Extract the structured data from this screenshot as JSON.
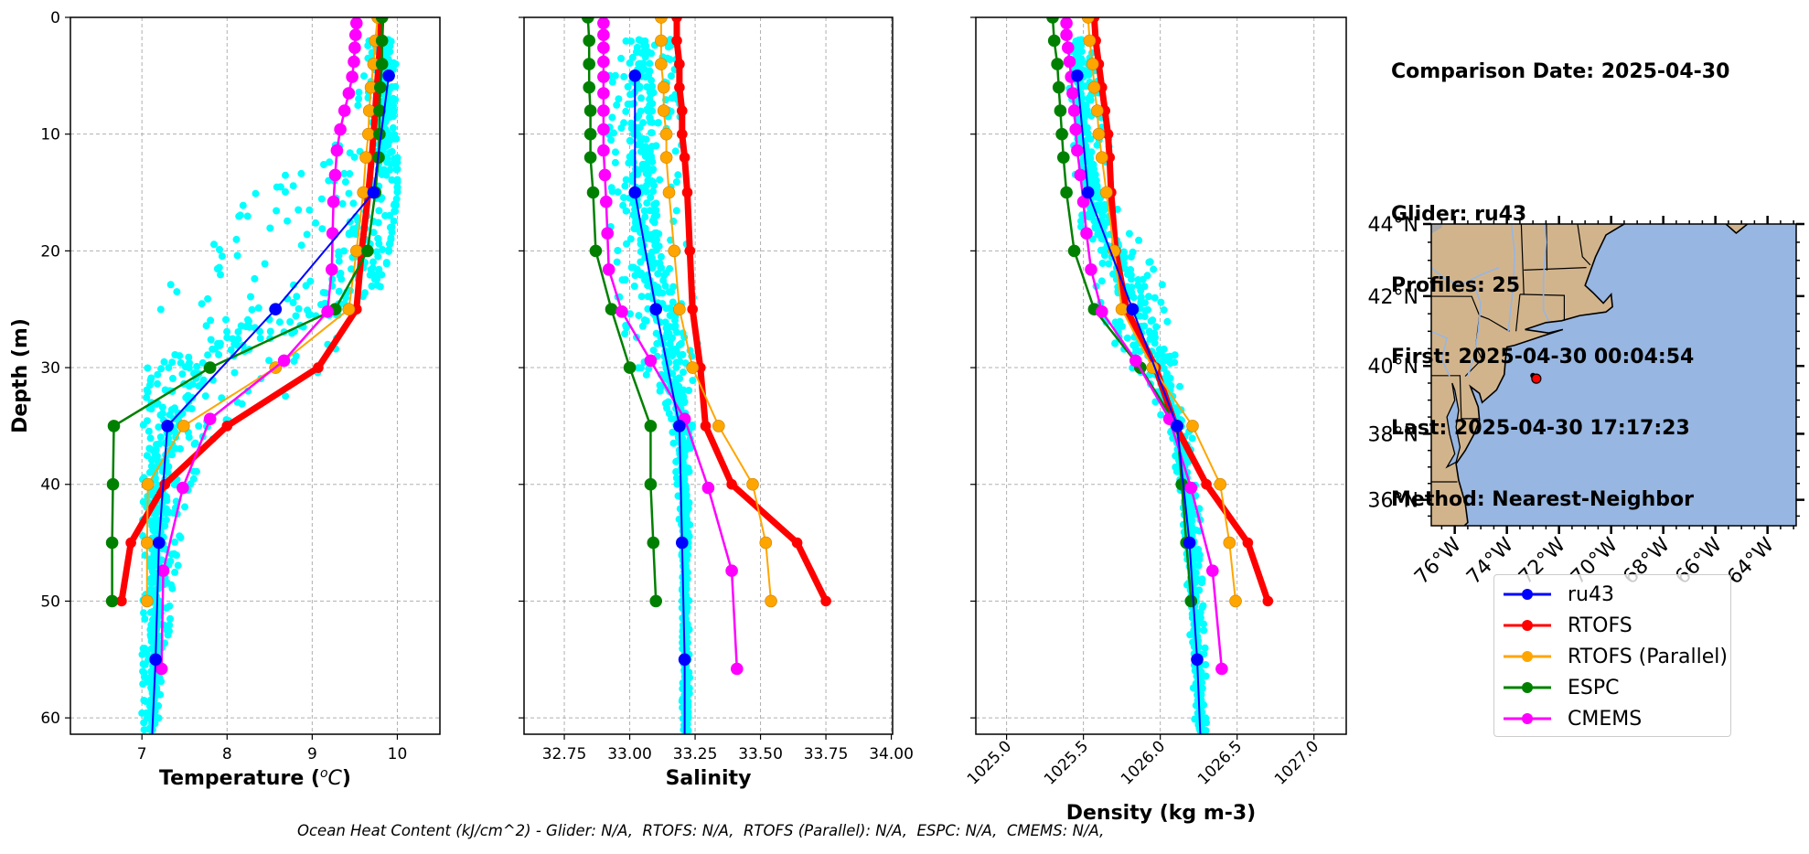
{
  "info_panel": {
    "comparison_date": "Comparison Date: 2025-04-30",
    "glider": "Glider: ru43",
    "profiles": "Profiles: 25",
    "first": "First: 2025-04-30 00:04:54",
    "last": "Last: 2025-04-30 17:17:23",
    "method": "Method: Nearest-Neighbor"
  },
  "caption": "Ocean Heat Content (kJ/cm^2) - Glider: N/A,  RTOFS: N/A,  RTOFS (Parallel): N/A,  ESPC: N/A,  CMEMS: N/A,",
  "legend": [
    {
      "label": "ru43",
      "color": "#0000ff"
    },
    {
      "label": "RTOFS",
      "color": "#ff0000"
    },
    {
      "label": "RTOFS (Parallel)",
      "color": "#ffa500"
    },
    {
      "label": "ESPC",
      "color": "#008000"
    },
    {
      "label": "CMEMS",
      "color": "#ff00ff"
    }
  ],
  "chart_data": [
    {
      "type": "line",
      "id": "temperature",
      "title": "",
      "xlabel": "Temperature (°C)",
      "ylabel": "Depth (m)",
      "xlim": [
        6.16,
        10.5
      ],
      "ylim": [
        61.4,
        0
      ],
      "xticks": [
        "7",
        "8",
        "9",
        "10"
      ],
      "xtick_values": [
        7,
        8,
        9,
        10
      ],
      "yticks": [
        "0",
        "10",
        "20",
        "30",
        "40",
        "50",
        "60"
      ],
      "ytick_values": [
        0,
        10,
        20,
        30,
        40,
        50,
        60
      ],
      "grid": true,
      "glider_scatter": {
        "name": "ru43 profiles",
        "color": "#00ffff",
        "depth": [
          2,
          5,
          10,
          15,
          18,
          20,
          22,
          25,
          28,
          30,
          33,
          35,
          40,
          45,
          50,
          55,
          60,
          61
        ],
        "min": [
          9.6,
          9.55,
          9.5,
          8.3,
          7.9,
          7.6,
          7.35,
          7.2,
          7.1,
          7.05,
          7.0,
          7.0,
          7.0,
          7.0,
          7.0,
          7.0,
          7.0,
          7.0
        ],
        "max": [
          9.95,
          10.0,
          10.0,
          10.0,
          9.95,
          9.9,
          9.85,
          9.7,
          9.5,
          9.3,
          8.6,
          8.0,
          7.6,
          7.45,
          7.4,
          7.25,
          7.2,
          7.15
        ],
        "core": [
          9.88,
          9.9,
          9.9,
          9.88,
          9.82,
          9.75,
          9.6,
          9.1,
          8.0,
          7.5,
          7.3,
          7.25,
          7.2,
          7.18,
          7.16,
          7.15,
          7.12,
          7.1
        ]
      },
      "series": [
        {
          "name": "RTOFS",
          "color": "#ff0000",
          "depth": [
            0,
            2,
            4,
            6,
            8,
            10,
            12,
            15,
            20,
            25,
            30,
            35,
            40,
            45,
            50
          ],
          "values": [
            9.81,
            9.8,
            9.78,
            9.76,
            9.74,
            9.72,
            9.7,
            9.66,
            9.58,
            9.52,
            9.07,
            8.0,
            7.27,
            6.87,
            6.76
          ]
        },
        {
          "name": "RTOFS (Parallel)",
          "color": "#ffa500",
          "depth": [
            0,
            2,
            4,
            6,
            8,
            10,
            12,
            15,
            20,
            25,
            30,
            35,
            40,
            45,
            50
          ],
          "values": [
            9.77,
            9.74,
            9.72,
            9.69,
            9.67,
            9.66,
            9.63,
            9.6,
            9.52,
            9.43,
            8.57,
            7.49,
            7.07,
            7.06,
            7.06
          ]
        },
        {
          "name": "ESPC",
          "color": "#008000",
          "depth": [
            0,
            2,
            4,
            6,
            8,
            10,
            12,
            15,
            20,
            25,
            30,
            35,
            40,
            45,
            50
          ],
          "values": [
            9.82,
            9.82,
            9.82,
            9.8,
            9.79,
            9.79,
            9.78,
            9.74,
            9.65,
            9.27,
            7.8,
            6.67,
            6.66,
            6.65,
            6.65
          ]
        },
        {
          "name": "CMEMS",
          "color": "#ff00ff",
          "depth": [
            0.5,
            1.5,
            2.6,
            3.8,
            5.1,
            6.5,
            8.0,
            9.6,
            11.4,
            13.5,
            15.8,
            18.5,
            21.6,
            25.2,
            29.4,
            34.4,
            40.3,
            47.4,
            55.8
          ],
          "values": [
            9.52,
            9.51,
            9.5,
            9.49,
            9.47,
            9.43,
            9.38,
            9.33,
            9.29,
            9.27,
            9.25,
            9.24,
            9.23,
            9.18,
            8.67,
            7.8,
            7.48,
            7.25,
            7.23
          ]
        },
        {
          "name": "ru43",
          "color": "#0000ff",
          "depth": [
            5,
            15,
            25,
            35,
            45,
            55,
            61.4
          ],
          "values": [
            9.9,
            9.72,
            8.57,
            7.3,
            7.2,
            7.16,
            7.12
          ]
        }
      ]
    },
    {
      "type": "line",
      "id": "salinity",
      "title": "",
      "xlabel": "Salinity",
      "ylabel": "",
      "xlim": [
        32.596,
        34.005
      ],
      "ylim": [
        61.4,
        0
      ],
      "xticks": [
        "32.75",
        "33.00",
        "33.25",
        "33.50",
        "33.75",
        "34.00"
      ],
      "xtick_values": [
        32.75,
        33.0,
        33.25,
        33.5,
        33.75,
        34.0
      ],
      "yticks": [
        "",
        "",
        "",
        "",
        "",
        "",
        ""
      ],
      "ytick_values": [
        0,
        10,
        20,
        30,
        40,
        50,
        60
      ],
      "grid": true,
      "glider_scatter": {
        "name": "ru43 profiles",
        "color": "#00ffff",
        "depth": [
          2,
          5,
          10,
          15,
          20,
          25,
          28,
          30,
          33,
          35,
          40,
          45,
          50,
          55,
          60,
          61
        ],
        "min": [
          32.94,
          32.92,
          32.92,
          32.92,
          32.93,
          32.96,
          32.98,
          33.03,
          33.12,
          33.16,
          33.18,
          33.19,
          33.2,
          33.2,
          33.2,
          33.2
        ],
        "max": [
          33.18,
          33.2,
          33.2,
          33.2,
          33.22,
          33.25,
          33.26,
          33.25,
          33.25,
          33.24,
          33.23,
          33.23,
          33.23,
          33.23,
          33.23,
          33.23
        ],
        "core": [
          33.04,
          33.04,
          33.04,
          33.05,
          33.07,
          33.12,
          33.15,
          33.17,
          33.19,
          33.2,
          33.21,
          33.21,
          33.21,
          33.21,
          33.22,
          33.22
        ]
      },
      "series": [
        {
          "name": "RTOFS",
          "color": "#ff0000",
          "depth": [
            0,
            2,
            4,
            6,
            8,
            10,
            12,
            15,
            20,
            25,
            30,
            35,
            40,
            45,
            50
          ],
          "values": [
            33.18,
            33.18,
            33.19,
            33.19,
            33.2,
            33.2,
            33.21,
            33.22,
            33.23,
            33.24,
            33.27,
            33.29,
            33.39,
            33.64,
            33.75
          ]
        },
        {
          "name": "RTOFS (Parallel)",
          "color": "#ffa500",
          "depth": [
            0,
            2,
            4,
            6,
            8,
            10,
            12,
            15,
            20,
            25,
            30,
            35,
            40,
            45,
            50
          ],
          "values": [
            33.12,
            33.12,
            33.12,
            33.13,
            33.13,
            33.14,
            33.14,
            33.15,
            33.17,
            33.19,
            33.24,
            33.34,
            33.47,
            33.52,
            33.54
          ]
        },
        {
          "name": "ESPC",
          "color": "#008000",
          "depth": [
            0,
            2,
            4,
            6,
            8,
            10,
            12,
            15,
            20,
            25,
            30,
            35,
            40,
            45,
            50
          ],
          "values": [
            32.84,
            32.845,
            32.845,
            32.845,
            32.85,
            32.85,
            32.85,
            32.86,
            32.87,
            32.93,
            33.0,
            33.08,
            33.08,
            33.09,
            33.1
          ]
        },
        {
          "name": "CMEMS",
          "color": "#ff00ff",
          "depth": [
            0.5,
            1.5,
            2.6,
            3.8,
            5.1,
            6.5,
            8.0,
            9.6,
            11.4,
            13.5,
            15.8,
            18.5,
            21.6,
            25.2,
            29.4,
            34.4,
            40.3,
            47.4,
            55.8
          ],
          "values": [
            32.9,
            32.9,
            32.9,
            32.9,
            32.9,
            32.9,
            32.9,
            32.9,
            32.9,
            32.905,
            32.91,
            32.915,
            32.92,
            32.97,
            33.08,
            33.21,
            33.3,
            33.39,
            33.41
          ]
        },
        {
          "name": "ru43",
          "color": "#0000ff",
          "depth": [
            5,
            15,
            25,
            35,
            45,
            55,
            61.4
          ],
          "values": [
            33.02,
            33.02,
            33.1,
            33.19,
            33.2,
            33.21,
            33.21
          ]
        }
      ]
    },
    {
      "type": "line",
      "id": "density",
      "title": "",
      "xlabel": "Density (kg m-3)",
      "ylabel": "",
      "xlim": [
        1024.8,
        1027.21
      ],
      "ylim": [
        61.4,
        0
      ],
      "xticks": [
        "1025.0",
        "1025.5",
        "1026.0",
        "1026.5",
        "1027.0"
      ],
      "xtick_values": [
        1025.0,
        1025.5,
        1026.0,
        1026.5,
        1027.0
      ],
      "yticks": [
        "",
        "",
        "",
        "",
        "",
        "",
        ""
      ],
      "ytick_values": [
        0,
        10,
        20,
        30,
        40,
        50,
        60
      ],
      "grid": true,
      "glider_scatter": {
        "name": "ru43 profiles",
        "color": "#00ffff",
        "depth": [
          2,
          5,
          10,
          15,
          18,
          20,
          22,
          25,
          28,
          30,
          33,
          35,
          40,
          45,
          50,
          55,
          60,
          61
        ],
        "min": [
          1025.4,
          1025.4,
          1025.42,
          1025.44,
          1025.46,
          1025.5,
          1025.55,
          1025.6,
          1025.7,
          1025.8,
          1025.95,
          1026.05,
          1026.12,
          1026.15,
          1026.18,
          1026.2,
          1026.22,
          1026.23
        ],
        "max": [
          1025.56,
          1025.6,
          1025.66,
          1025.72,
          1025.85,
          1025.92,
          1026.0,
          1026.05,
          1026.1,
          1026.12,
          1026.16,
          1026.2,
          1026.25,
          1026.27,
          1026.28,
          1026.3,
          1026.3,
          1026.3
        ],
        "core": [
          1025.46,
          1025.47,
          1025.5,
          1025.55,
          1025.62,
          1025.68,
          1025.75,
          1025.85,
          1025.95,
          1026.0,
          1026.06,
          1026.1,
          1026.17,
          1026.2,
          1026.22,
          1026.24,
          1026.26,
          1026.27
        ]
      },
      "series": [
        {
          "name": "RTOFS",
          "color": "#ff0000",
          "depth": [
            0,
            2,
            4,
            6,
            8,
            10,
            12,
            15,
            20,
            25,
            30,
            35,
            40,
            45,
            50
          ],
          "values": [
            1025.57,
            1025.58,
            1025.6,
            1025.62,
            1025.64,
            1025.66,
            1025.67,
            1025.68,
            1025.71,
            1025.78,
            1025.97,
            1026.1,
            1026.3,
            1026.57,
            1026.7
          ]
        },
        {
          "name": "RTOFS (Parallel)",
          "color": "#ffa500",
          "depth": [
            0,
            2,
            4,
            6,
            8,
            10,
            12,
            15,
            20,
            25,
            30,
            35,
            40,
            45,
            50
          ],
          "values": [
            1025.53,
            1025.54,
            1025.56,
            1025.57,
            1025.59,
            1025.6,
            1025.62,
            1025.65,
            1025.7,
            1025.75,
            1025.95,
            1026.21,
            1026.39,
            1026.45,
            1026.49
          ]
        },
        {
          "name": "ESPC",
          "color": "#008000",
          "depth": [
            0,
            2,
            4,
            6,
            8,
            10,
            12,
            15,
            20,
            25,
            30,
            35,
            40,
            45,
            50
          ],
          "values": [
            1025.3,
            1025.31,
            1025.33,
            1025.34,
            1025.35,
            1025.36,
            1025.37,
            1025.39,
            1025.44,
            1025.57,
            1025.87,
            1026.11,
            1026.14,
            1026.17,
            1026.2
          ]
        },
        {
          "name": "CMEMS",
          "color": "#ff00ff",
          "depth": [
            0.5,
            1.5,
            2.6,
            3.8,
            5.1,
            6.5,
            8.0,
            9.6,
            11.4,
            13.5,
            15.8,
            18.5,
            21.6,
            25.2,
            29.4,
            34.4,
            40.3,
            47.4,
            55.8
          ],
          "values": [
            1025.39,
            1025.39,
            1025.4,
            1025.41,
            1025.42,
            1025.43,
            1025.44,
            1025.45,
            1025.46,
            1025.48,
            1025.5,
            1025.52,
            1025.55,
            1025.62,
            1025.84,
            1026.06,
            1026.2,
            1026.34,
            1026.4
          ]
        },
        {
          "name": "ru43",
          "color": "#0000ff",
          "depth": [
            5,
            15,
            25,
            35,
            45,
            55,
            61.4
          ],
          "values": [
            1025.46,
            1025.53,
            1025.82,
            1026.11,
            1026.19,
            1026.24,
            1026.26
          ]
        }
      ]
    },
    {
      "type": "map",
      "id": "location-map",
      "xlim_lon": [
        -76.9,
        -62.9
      ],
      "ylim_lat": [
        35.2,
        44.0
      ],
      "xticks": [
        "76°W",
        "74°W",
        "72°W",
        "70°W",
        "68°W",
        "66°W",
        "64°W"
      ],
      "xtick_values": [
        -76,
        -74,
        -72,
        -70,
        -68,
        -66,
        -64
      ],
      "yticks": [
        "44°N",
        "42°N",
        "40°N",
        "38°N",
        "36°N"
      ],
      "ytick_values": [
        44,
        42,
        40,
        38,
        36
      ],
      "land_color": "#d2b48c",
      "ocean_color": "#97b6e1",
      "glider_track": {
        "lon": [
          -73.0,
          -72.9
        ],
        "lat": [
          39.72,
          39.65
        ],
        "color": "#000000"
      },
      "glider_position": {
        "lon": -72.87,
        "lat": 39.63,
        "color": "#ff0000"
      }
    }
  ]
}
